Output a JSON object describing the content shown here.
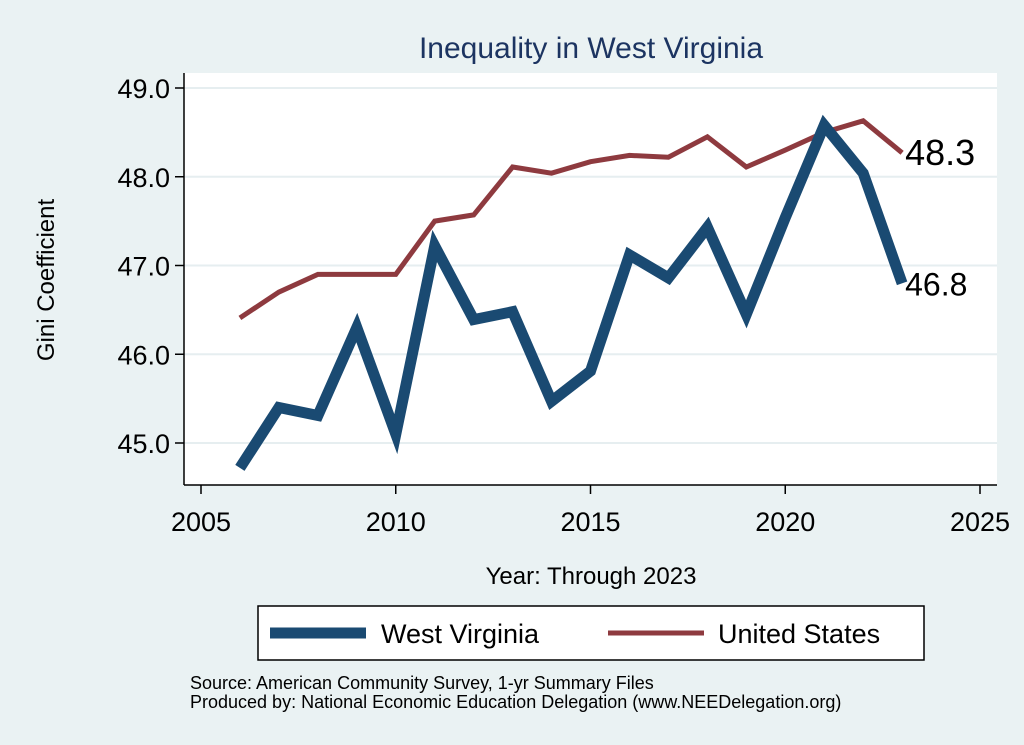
{
  "chart_data": {
    "type": "line",
    "title": "Inequality in West Virginia",
    "xlabel": "Year: Through 2023",
    "ylabel": "Gini Coefficient",
    "xlim": [
      2005,
      2025
    ],
    "ylim": [
      44.5,
      49.2
    ],
    "xticks": [
      2005,
      2010,
      2015,
      2020,
      2025
    ],
    "yticks": [
      45.0,
      46.0,
      47.0,
      48.0,
      49.0
    ],
    "ytick_labels": [
      "45.0",
      "46.0",
      "47.0",
      "48.0",
      "49.0"
    ],
    "grid": true,
    "legend_position": "bottom",
    "series": [
      {
        "name": "West Virginia",
        "color": "#1a4a72",
        "end_label": "46.8",
        "x": [
          2006,
          2007,
          2008,
          2009,
          2010,
          2011,
          2012,
          2013,
          2014,
          2015,
          2016,
          2017,
          2018,
          2019,
          2020,
          2021,
          2022,
          2023
        ],
        "values": [
          44.72,
          45.4,
          45.31,
          46.3,
          45.1,
          47.22,
          46.39,
          46.48,
          45.47,
          45.81,
          47.12,
          46.86,
          47.43,
          46.45,
          47.54,
          48.58,
          48.04,
          46.8
        ]
      },
      {
        "name": "United States",
        "color": "#8e3a3f",
        "end_label": "48.3",
        "x": [
          2006,
          2007,
          2008,
          2009,
          2010,
          2011,
          2012,
          2013,
          2014,
          2015,
          2016,
          2017,
          2018,
          2019,
          2020,
          2021,
          2022,
          2023
        ],
        "values": [
          46.41,
          46.7,
          46.9,
          46.9,
          46.9,
          47.5,
          47.57,
          48.11,
          48.04,
          48.17,
          48.24,
          48.22,
          48.45,
          48.11,
          48.3,
          48.5,
          48.63,
          48.27
        ]
      }
    ]
  },
  "source": {
    "line1": "Source: American Community Survey, 1-yr Summary Files",
    "line2": "Produced by: National Economic Education Delegation (www.NEEDelegation.org)"
  }
}
